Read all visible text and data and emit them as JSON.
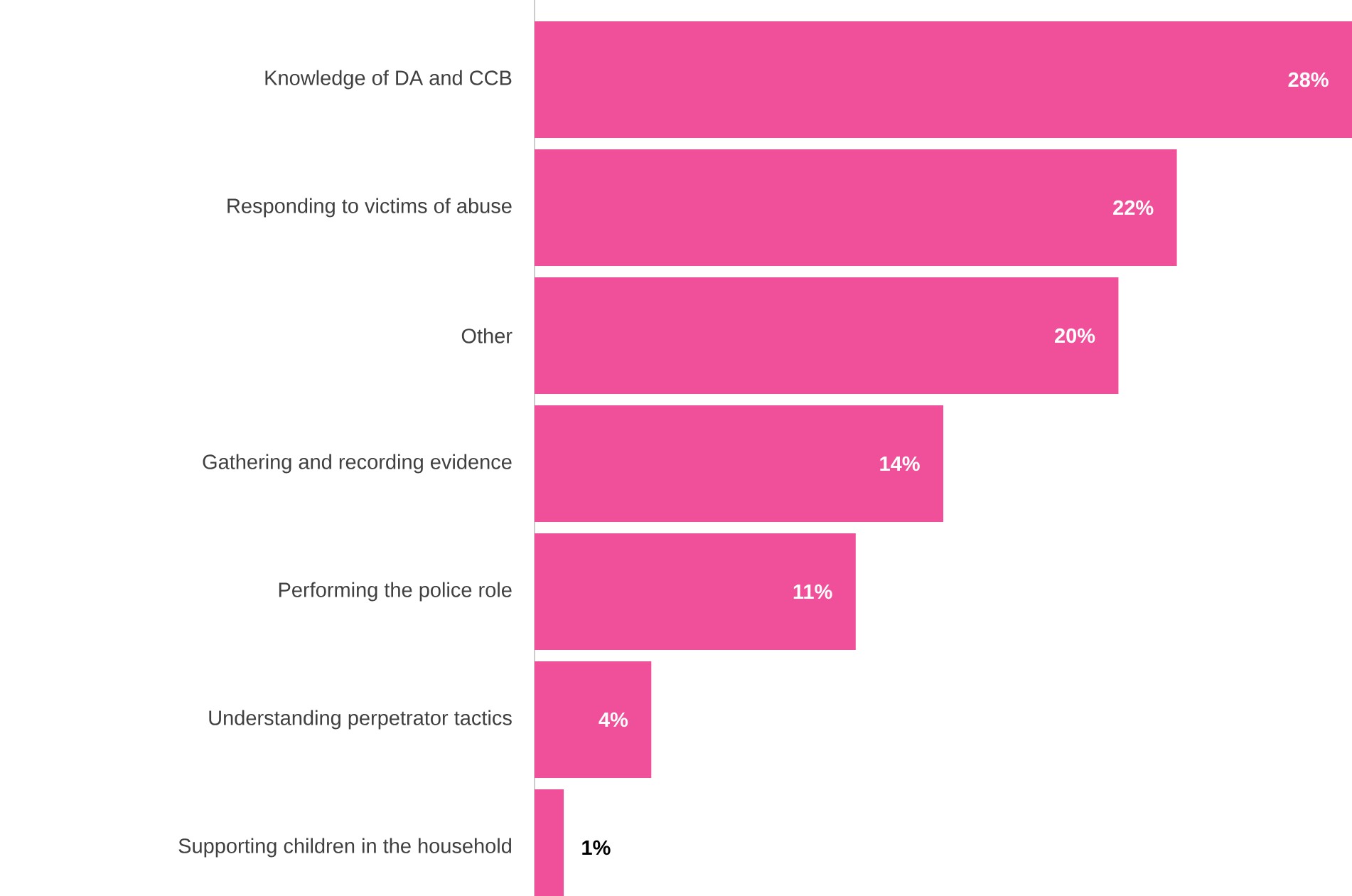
{
  "chart_data": {
    "type": "bar",
    "orientation": "horizontal",
    "categories": [
      "Knowledge of DA and CCB",
      "Responding to victims of abuse",
      "Other",
      "Gathering and recording evidence",
      "Performing the police role",
      "Understanding perpetrator tactics",
      "Supporting children in the household"
    ],
    "values": [
      28,
      22,
      20,
      14,
      11,
      4,
      1
    ],
    "value_labels": [
      "28%",
      "22%",
      "20%",
      "14%",
      "11%",
      "4%",
      "1%"
    ],
    "color": "#f0509a"
  }
}
